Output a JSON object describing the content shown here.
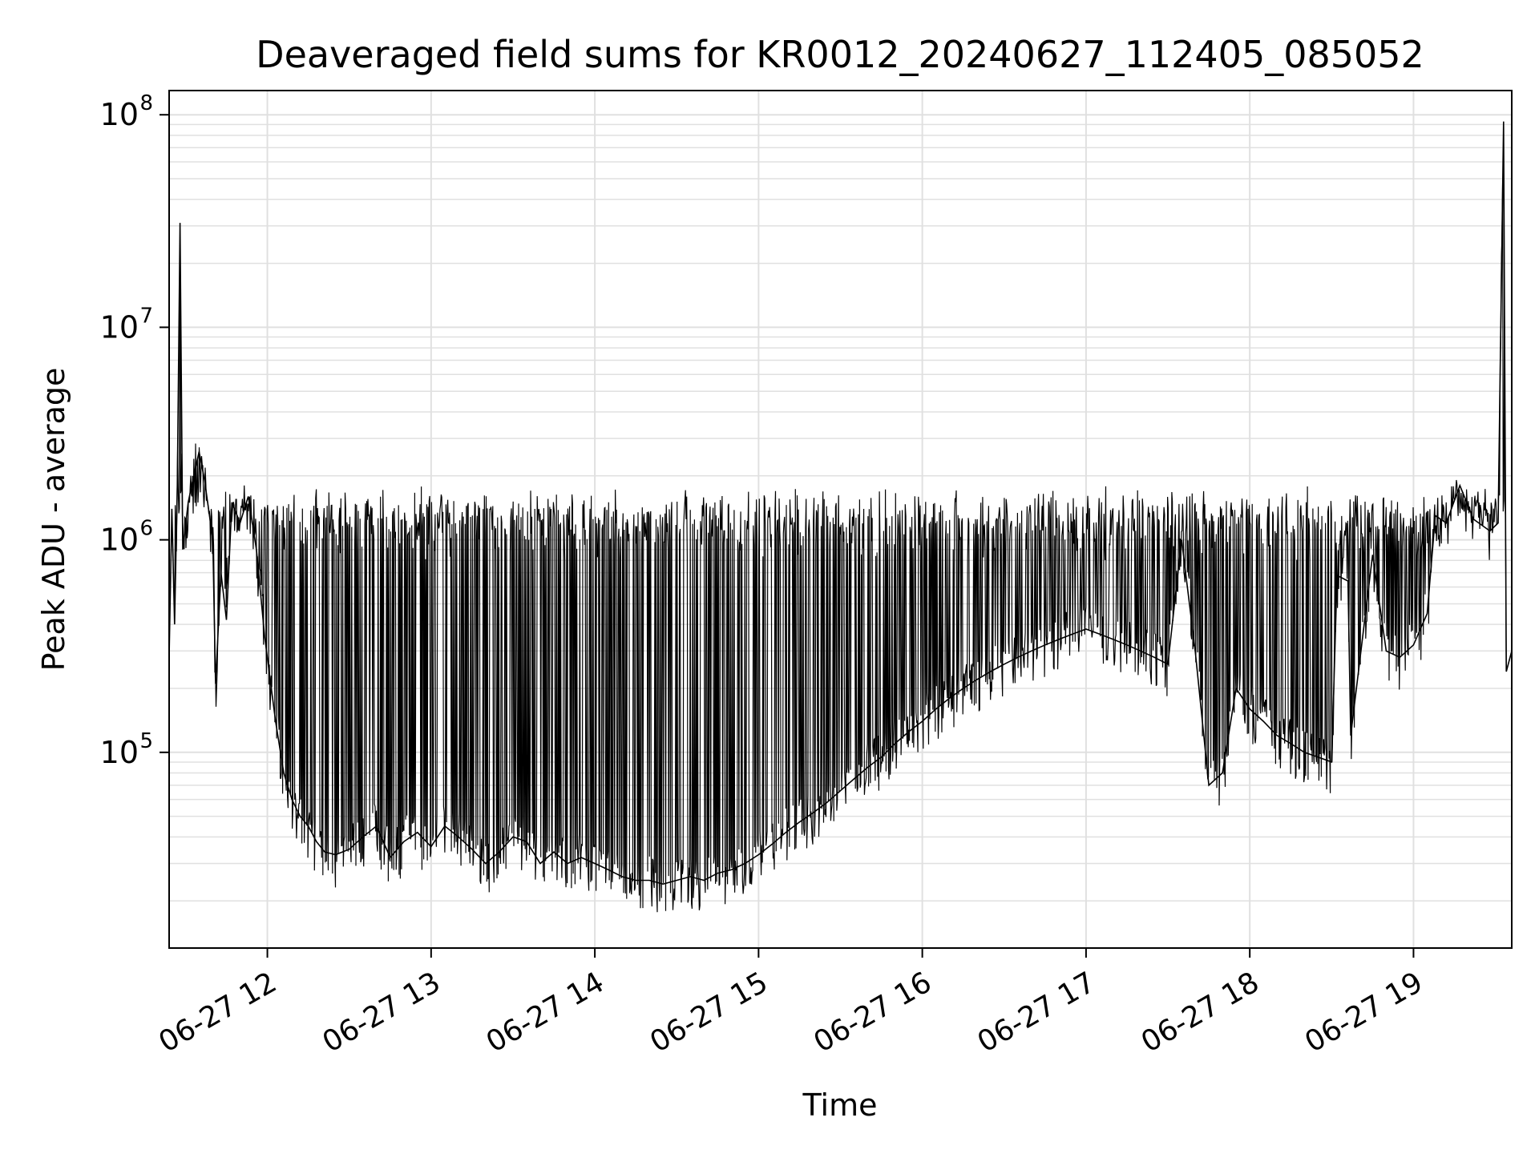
{
  "chart_data": {
    "type": "line",
    "title": "Deaveraged field sums for KR0012_20240627_112405_085052",
    "xlabel": "Time",
    "ylabel": "Peak ADU - average",
    "yscale": "log",
    "ylim": [
      12000,
      130000000
    ],
    "xlim": [
      "2024-06-27 11:24",
      "2024-06-27 19:36"
    ],
    "grid": true,
    "legend": "none",
    "colors": {
      "line": "#000000",
      "grid": "#e0e0e0",
      "axes": "#000000",
      "background": "#ffffff"
    },
    "x_ticks": [
      {
        "value": "2024-06-27 12:00",
        "label": "06-27 12"
      },
      {
        "value": "2024-06-27 13:00",
        "label": "06-27 13"
      },
      {
        "value": "2024-06-27 14:00",
        "label": "06-27 14"
      },
      {
        "value": "2024-06-27 15:00",
        "label": "06-27 15"
      },
      {
        "value": "2024-06-27 16:00",
        "label": "06-27 16"
      },
      {
        "value": "2024-06-27 17:00",
        "label": "06-27 17"
      },
      {
        "value": "2024-06-27 18:00",
        "label": "06-27 18"
      },
      {
        "value": "2024-06-27 19:00",
        "label": "06-27 19"
      }
    ],
    "y_ticks": [
      {
        "value": 100000,
        "base": "10",
        "exp": "5"
      },
      {
        "value": 1000000,
        "base": "10",
        "exp": "6"
      },
      {
        "value": 10000000,
        "base": "10",
        "exp": "7"
      },
      {
        "value": 100000000,
        "base": "10",
        "exp": "8"
      }
    ],
    "series": [
      {
        "points": [
          [
            "2024-06-27 11:24",
            280000
          ],
          [
            "2024-06-27 11:25",
            1400000
          ],
          [
            "2024-06-27 11:26",
            400000
          ],
          [
            "2024-06-27 11:27",
            1800000
          ],
          [
            "2024-06-27 11:28",
            31000000
          ],
          [
            "2024-06-27 11:29",
            900000
          ],
          [
            "2024-06-27 11:31",
            1500000
          ],
          [
            "2024-06-27 11:33",
            2000000
          ],
          [
            "2024-06-27 11:35",
            2600000
          ],
          [
            "2024-06-27 11:37",
            1900000
          ],
          [
            "2024-06-27 11:40",
            1000000
          ],
          [
            "2024-06-27 11:41",
            210000
          ],
          [
            "2024-06-27 11:43",
            700000
          ],
          [
            "2024-06-27 11:45",
            420000
          ],
          [
            "2024-06-27 11:47",
            1500000
          ],
          [
            "2024-06-27 11:50",
            1200000
          ],
          [
            "2024-06-27 11:53",
            1600000
          ],
          [
            "2024-06-27 11:56",
            900000
          ],
          [
            "2024-06-27 11:59",
            350000
          ],
          [
            "2024-06-27 12:03",
            140000
          ],
          [
            "2024-06-27 12:06",
            80000
          ],
          [
            "2024-06-27 12:09",
            60000
          ],
          [
            "2024-06-27 12:12",
            50000
          ],
          [
            "2024-06-27 12:15",
            45000
          ],
          [
            "2024-06-27 12:18",
            38000
          ],
          [
            "2024-06-27 12:21",
            34000
          ],
          [
            "2024-06-27 12:25",
            33000
          ],
          [
            "2024-06-27 12:30",
            35000
          ],
          [
            "2024-06-27 12:35",
            40000
          ],
          [
            "2024-06-27 12:40",
            45000
          ],
          [
            "2024-06-27 12:45",
            32000
          ],
          [
            "2024-06-27 12:50",
            38000
          ],
          [
            "2024-06-27 12:55",
            42000
          ],
          [
            "2024-06-27 13:00",
            36000
          ],
          [
            "2024-06-27 13:05",
            45000
          ],
          [
            "2024-06-27 13:10",
            40000
          ],
          [
            "2024-06-27 13:15",
            35000
          ],
          [
            "2024-06-27 13:20",
            30000
          ],
          [
            "2024-06-27 13:25",
            34000
          ],
          [
            "2024-06-27 13:30",
            40000
          ],
          [
            "2024-06-27 13:35",
            38000
          ],
          [
            "2024-06-27 13:40",
            30000
          ],
          [
            "2024-06-27 13:45",
            34000
          ],
          [
            "2024-06-27 13:50",
            30000
          ],
          [
            "2024-06-27 13:55",
            32000
          ],
          [
            "2024-06-27 14:00",
            30000
          ],
          [
            "2024-06-27 14:05",
            28000
          ],
          [
            "2024-06-27 14:10",
            26000
          ],
          [
            "2024-06-27 14:15",
            25000
          ],
          [
            "2024-06-27 14:20",
            25000
          ],
          [
            "2024-06-27 14:25",
            24000
          ],
          [
            "2024-06-27 14:30",
            25000
          ],
          [
            "2024-06-27 14:35",
            26000
          ],
          [
            "2024-06-27 14:40",
            25000
          ],
          [
            "2024-06-27 14:45",
            27000
          ],
          [
            "2024-06-27 14:50",
            28000
          ],
          [
            "2024-06-27 14:55",
            30000
          ],
          [
            "2024-06-27 15:00",
            33000
          ],
          [
            "2024-06-27 15:05",
            37000
          ],
          [
            "2024-06-27 15:10",
            42000
          ],
          [
            "2024-06-27 15:15",
            47000
          ],
          [
            "2024-06-27 15:20",
            52000
          ],
          [
            "2024-06-27 15:25",
            58000
          ],
          [
            "2024-06-27 15:30",
            66000
          ],
          [
            "2024-06-27 15:35",
            75000
          ],
          [
            "2024-06-27 15:40",
            85000
          ],
          [
            "2024-06-27 15:45",
            95000
          ],
          [
            "2024-06-27 15:50",
            110000
          ],
          [
            "2024-06-27 15:55",
            125000
          ],
          [
            "2024-06-27 16:00",
            140000
          ],
          [
            "2024-06-27 16:05",
            160000
          ],
          [
            "2024-06-27 16:10",
            180000
          ],
          [
            "2024-06-27 16:15",
            200000
          ],
          [
            "2024-06-27 16:20",
            220000
          ],
          [
            "2024-06-27 16:25",
            240000
          ],
          [
            "2024-06-27 16:30",
            260000
          ],
          [
            "2024-06-27 16:35",
            280000
          ],
          [
            "2024-06-27 16:40",
            300000
          ],
          [
            "2024-06-27 16:45",
            320000
          ],
          [
            "2024-06-27 16:50",
            340000
          ],
          [
            "2024-06-27 16:55",
            360000
          ],
          [
            "2024-06-27 17:00",
            380000
          ],
          [
            "2024-06-27 17:05",
            360000
          ],
          [
            "2024-06-27 17:10",
            340000
          ],
          [
            "2024-06-27 17:15",
            320000
          ],
          [
            "2024-06-27 17:20",
            300000
          ],
          [
            "2024-06-27 17:25",
            280000
          ],
          [
            "2024-06-27 17:30",
            260000
          ],
          [
            "2024-06-27 17:35",
            1000000
          ],
          [
            "2024-06-27 17:40",
            300000
          ],
          [
            "2024-06-27 17:45",
            70000
          ],
          [
            "2024-06-27 17:50",
            80000
          ],
          [
            "2024-06-27 17:55",
            200000
          ],
          [
            "2024-06-27 18:00",
            160000
          ],
          [
            "2024-06-27 18:05",
            140000
          ],
          [
            "2024-06-27 18:10",
            120000
          ],
          [
            "2024-06-27 18:15",
            110000
          ],
          [
            "2024-06-27 18:20",
            100000
          ],
          [
            "2024-06-27 18:25",
            95000
          ],
          [
            "2024-06-27 18:30",
            90000
          ],
          [
            "2024-06-27 18:32",
            680000
          ],
          [
            "2024-06-27 18:36",
            640000
          ],
          [
            "2024-06-27 18:37",
            120000
          ],
          [
            "2024-06-27 18:45",
            850000
          ],
          [
            "2024-06-27 18:50",
            300000
          ],
          [
            "2024-06-27 18:55",
            280000
          ],
          [
            "2024-06-27 19:00",
            320000
          ],
          [
            "2024-06-27 19:05",
            450000
          ],
          [
            "2024-06-27 19:08",
            1300000
          ],
          [
            "2024-06-27 19:12",
            1200000
          ],
          [
            "2024-06-27 19:17",
            1800000
          ],
          [
            "2024-06-27 19:22",
            1250000
          ],
          [
            "2024-06-27 19:28",
            1100000
          ],
          [
            "2024-06-27 19:31",
            1200000
          ],
          [
            "2024-06-27 19:33",
            93000000
          ],
          [
            "2024-06-27 19:34",
            240000
          ],
          [
            "2024-06-27 19:36",
            300000
          ]
        ]
      }
    ]
  }
}
